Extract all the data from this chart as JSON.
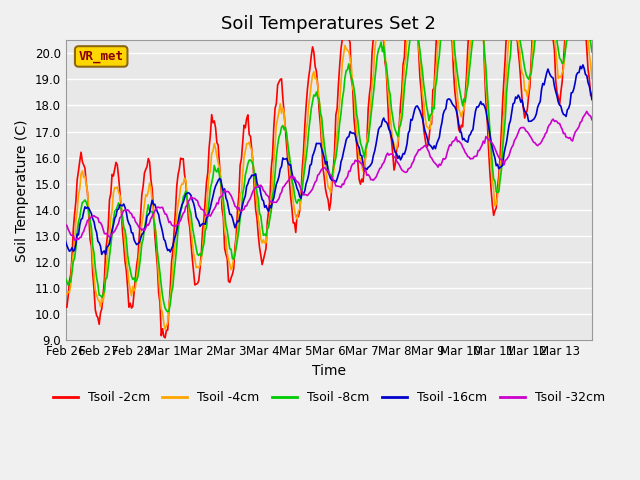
{
  "title": "Soil Temperatures Set 2",
  "xlabel": "Time",
  "ylabel": "Soil Temperature (C)",
  "ylim": [
    9.0,
    20.5
  ],
  "yticks": [
    9.0,
    10.0,
    11.0,
    12.0,
    13.0,
    14.0,
    15.0,
    16.0,
    17.0,
    18.0,
    19.0,
    20.0
  ],
  "xtick_positions": [
    0,
    1,
    2,
    3,
    4,
    5,
    6,
    7,
    8,
    9,
    10,
    11,
    12,
    13,
    14,
    15,
    16
  ],
  "xtick_labels": [
    "Feb 26",
    "Feb 27",
    "Feb 28",
    "Mar 1",
    "Mar 2",
    "Mar 3",
    "Mar 4",
    "Mar 5",
    "Mar 6",
    "Mar 7",
    "Mar 8",
    "Mar 9",
    "Mar 10",
    "Mar 11",
    "Mar 12",
    "Mar 13",
    ""
  ],
  "annotation_text": "VR_met",
  "annotation_color": "#8B0000",
  "annotation_bg": "#FFD700",
  "annotation_edge": "#8B6914",
  "line_colors": {
    "Tsoil -2cm": "#FF0000",
    "Tsoil -4cm": "#FFA500",
    "Tsoil -8cm": "#00CC00",
    "Tsoil -16cm": "#0000CC",
    "Tsoil -32cm": "#CC00CC"
  },
  "plot_bg_color": "#E8E8E8",
  "fig_bg_color": "#F0F0F0",
  "grid_color": "#FFFFFF",
  "title_fontsize": 13,
  "axis_label_fontsize": 10,
  "tick_label_fontsize": 8.5,
  "legend_fontsize": 9,
  "line_width": 1.2
}
